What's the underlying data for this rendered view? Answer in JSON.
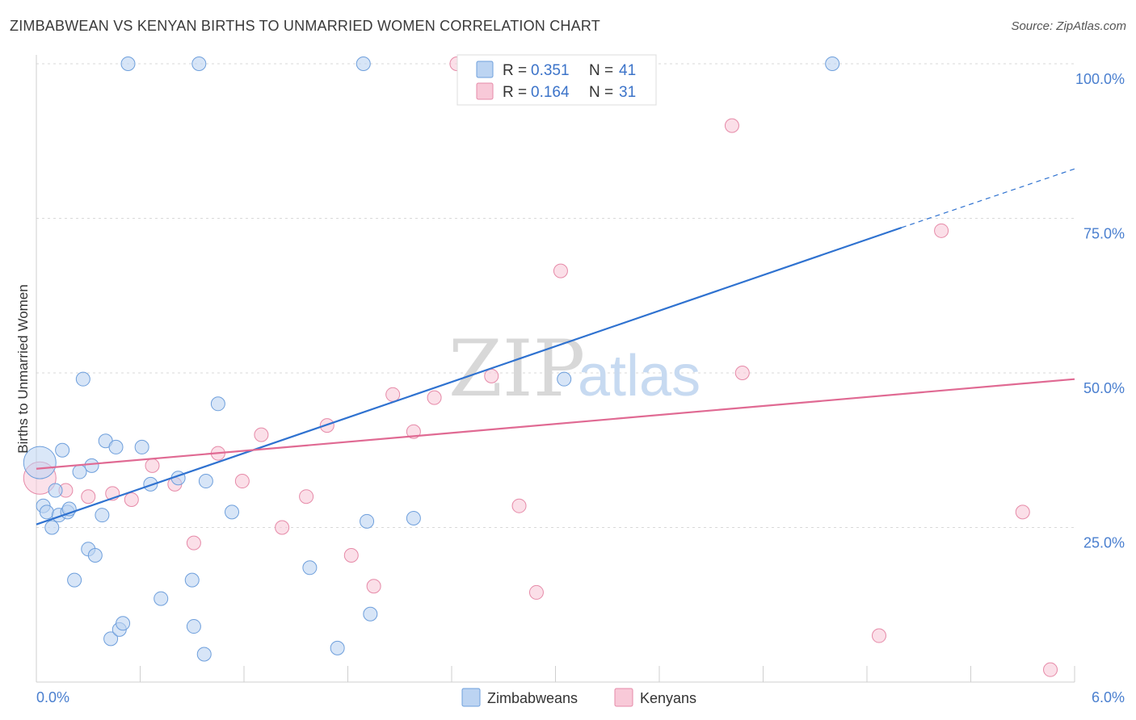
{
  "title": "ZIMBABWEAN VS KENYAN BIRTHS TO UNMARRIED WOMEN CORRELATION CHART",
  "source": "Source: ZipAtlas.com",
  "watermark": {
    "zip": "ZIP",
    "atlas": "atlas"
  },
  "colors": {
    "zimbabweans_fill": "#bcd4f2",
    "zimbabweans_stroke": "#6e9fdc",
    "zimbabweans_line": "#2f72d0",
    "kenyans_fill": "#f8c9d8",
    "kenyans_stroke": "#e68aa8",
    "kenyans_line": "#e06a93",
    "tick_text": "#4a7fcf",
    "grid": "#d9d9d9"
  },
  "legend": {
    "rows": [
      {
        "r_label": "R = ",
        "r_value": "0.351",
        "n_label": "N = ",
        "n_value": "41"
      },
      {
        "r_label": "R = ",
        "r_value": "0.164",
        "n_label": "N = ",
        "n_value": "31"
      }
    ]
  },
  "chart_data": {
    "type": "scatter",
    "title": "ZIMBABWEAN VS KENYAN BIRTHS TO UNMARRIED WOMEN CORRELATION CHART",
    "xlabel": "",
    "ylabel": "Births to Unmarried Women",
    "xlim": [
      0,
      6
    ],
    "ylim": [
      0,
      100
    ],
    "x_ticks": [
      {
        "value": 0,
        "label": "0.0%"
      },
      {
        "value": 6,
        "label": "6.0%"
      }
    ],
    "y_ticks": [
      {
        "value": 25,
        "label": "25.0%"
      },
      {
        "value": 50,
        "label": "50.0%"
      },
      {
        "value": 75,
        "label": "75.0%"
      },
      {
        "value": 100,
        "label": "100.0%"
      }
    ],
    "grid": true,
    "legend_position": "top-center",
    "series": [
      {
        "name": "Zimbabweans",
        "r": 0.351,
        "n": 41,
        "trend": {
          "x": [
            0,
            5.0
          ],
          "y": [
            25.5,
            73.5
          ],
          "dashed_to": [
            6.0,
            83.0
          ]
        },
        "points": [
          {
            "x": 0.02,
            "y": 35.5,
            "big": true
          },
          {
            "x": 0.04,
            "y": 28.5
          },
          {
            "x": 0.06,
            "y": 27.5
          },
          {
            "x": 0.09,
            "y": 25
          },
          {
            "x": 0.11,
            "y": 31
          },
          {
            "x": 0.13,
            "y": 27
          },
          {
            "x": 0.15,
            "y": 37.5
          },
          {
            "x": 0.18,
            "y": 27.5
          },
          {
            "x": 0.19,
            "y": 28
          },
          {
            "x": 0.22,
            "y": 16.5
          },
          {
            "x": 0.25,
            "y": 34
          },
          {
            "x": 0.27,
            "y": 49
          },
          {
            "x": 0.3,
            "y": 21.5
          },
          {
            "x": 0.32,
            "y": 35
          },
          {
            "x": 0.34,
            "y": 20.5
          },
          {
            "x": 0.38,
            "y": 27
          },
          {
            "x": 0.4,
            "y": 39
          },
          {
            "x": 0.43,
            "y": 7
          },
          {
            "x": 0.46,
            "y": 38
          },
          {
            "x": 0.48,
            "y": 8.5
          },
          {
            "x": 0.5,
            "y": 9.5
          },
          {
            "x": 0.53,
            "y": 100
          },
          {
            "x": 0.61,
            "y": 38
          },
          {
            "x": 0.66,
            "y": 32
          },
          {
            "x": 0.72,
            "y": 13.5
          },
          {
            "x": 0.82,
            "y": 33
          },
          {
            "x": 0.9,
            "y": 16.5
          },
          {
            "x": 0.91,
            "y": 9
          },
          {
            "x": 0.94,
            "y": 100
          },
          {
            "x": 0.97,
            "y": 4.5
          },
          {
            "x": 0.98,
            "y": 32.5
          },
          {
            "x": 1.05,
            "y": 45
          },
          {
            "x": 1.13,
            "y": 27.5
          },
          {
            "x": 1.58,
            "y": 18.5
          },
          {
            "x": 1.74,
            "y": 5.5
          },
          {
            "x": 1.89,
            "y": 100
          },
          {
            "x": 1.91,
            "y": 26
          },
          {
            "x": 1.93,
            "y": 11
          },
          {
            "x": 2.18,
            "y": 26.5
          },
          {
            "x": 3.05,
            "y": 49
          },
          {
            "x": 4.6,
            "y": 100
          }
        ]
      },
      {
        "name": "Kenyans",
        "r": 0.164,
        "n": 31,
        "trend": {
          "x": [
            0,
            6.0
          ],
          "y": [
            34.5,
            49
          ]
        },
        "points": [
          {
            "x": 0.02,
            "y": 33,
            "big": true
          },
          {
            "x": 0.17,
            "y": 31
          },
          {
            "x": 0.3,
            "y": 30
          },
          {
            "x": 0.44,
            "y": 30.5
          },
          {
            "x": 0.55,
            "y": 29.5
          },
          {
            "x": 0.67,
            "y": 35
          },
          {
            "x": 0.8,
            "y": 32
          },
          {
            "x": 0.91,
            "y": 22.5
          },
          {
            "x": 1.05,
            "y": 37
          },
          {
            "x": 1.19,
            "y": 32.5
          },
          {
            "x": 1.3,
            "y": 40
          },
          {
            "x": 1.42,
            "y": 25
          },
          {
            "x": 1.56,
            "y": 30
          },
          {
            "x": 1.68,
            "y": 41.5
          },
          {
            "x": 1.82,
            "y": 20.5
          },
          {
            "x": 1.95,
            "y": 15.5
          },
          {
            "x": 2.06,
            "y": 46.5
          },
          {
            "x": 2.18,
            "y": 40.5
          },
          {
            "x": 2.3,
            "y": 46
          },
          {
            "x": 2.43,
            "y": 100
          },
          {
            "x": 2.63,
            "y": 49.5
          },
          {
            "x": 2.79,
            "y": 28.5
          },
          {
            "x": 2.89,
            "y": 14.5
          },
          {
            "x": 3.03,
            "y": 66.5
          },
          {
            "x": 3.3,
            "y": 100
          },
          {
            "x": 4.02,
            "y": 90
          },
          {
            "x": 4.08,
            "y": 50
          },
          {
            "x": 4.87,
            "y": 7.5
          },
          {
            "x": 5.23,
            "y": 73
          },
          {
            "x": 5.7,
            "y": 27.5
          },
          {
            "x": 5.86,
            "y": 2
          }
        ]
      }
    ]
  }
}
